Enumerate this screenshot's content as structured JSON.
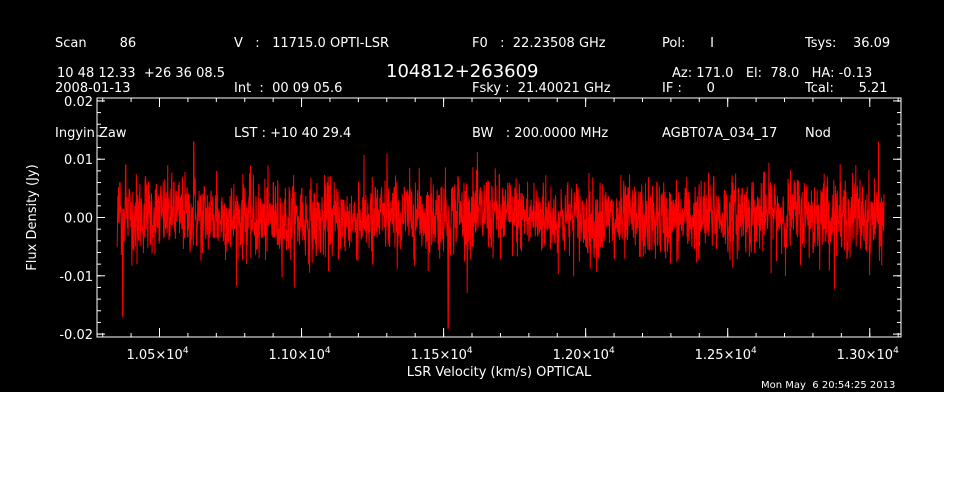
{
  "header": {
    "col1": [
      "Scan        86",
      "2008-01-13",
      "Ingyin Zaw"
    ],
    "col2": [
      "V   :   11715.0 OPTI-LSR",
      "Int  :  00 09 05.6",
      "LST : +10 40 29.4"
    ],
    "col3": [
      "F0   :  22.23508 GHz",
      "Fsky :  21.40021 GHz",
      "BW   : 200.0000 MHz"
    ],
    "col4": [
      "Pol:      I",
      "IF :      0",
      "AGBT07A_034_17"
    ],
    "col5": [
      "Tsys:    36.09",
      "Tcal:      5.21",
      "Nod"
    ],
    "coords": "10 48 12.33  +26 36 08.5",
    "source": "104812+263609",
    "azel": "Az: 171.0   El:  78.0   HA: -0.13"
  },
  "timestamp": "Mon May  6 20:54:25 2013",
  "colors": {
    "background": "#000000",
    "trace": "#ff0000",
    "axes": "#ffffff"
  },
  "chart_data": {
    "type": "line",
    "xlabel": "LSR Velocity (km/s) OPTICAL",
    "ylabel": "Flux Density (Jy)",
    "xlim": [
      10280,
      13110
    ],
    "ylim": [
      -0.0205,
      0.0205
    ],
    "x_ticks": [
      {
        "value": 10500,
        "mantissa": "1.05",
        "exp": "4"
      },
      {
        "value": 11000,
        "mantissa": "1.10",
        "exp": "4"
      },
      {
        "value": 11500,
        "mantissa": "1.15",
        "exp": "4"
      },
      {
        "value": 12000,
        "mantissa": "1.20",
        "exp": "4"
      },
      {
        "value": 12500,
        "mantissa": "1.25",
        "exp": "4"
      },
      {
        "value": 13000,
        "mantissa": "1.30",
        "exp": "4"
      }
    ],
    "y_ticks": [
      {
        "value": 0.02,
        "label": "0.02"
      },
      {
        "value": 0.01,
        "label": "0.01"
      },
      {
        "value": 0.0,
        "label": "0.00"
      },
      {
        "value": -0.01,
        "label": "-0.01"
      },
      {
        "value": -0.02,
        "label": "-0.02"
      }
    ],
    "series": [
      {
        "x_range": [
          10350,
          13050
        ],
        "noise_rms": 0.0045,
        "samples": [
          [
            10350,
            -0.005
          ],
          [
            10360,
            0.006
          ],
          [
            10370,
            -0.017
          ],
          [
            10380,
            0.009
          ],
          [
            10390,
            0.003
          ],
          [
            10420,
            -0.008
          ],
          [
            10450,
            0.007
          ],
          [
            10500,
            -0.004
          ],
          [
            10550,
            0.006
          ],
          [
            10600,
            0.004
          ],
          [
            10620,
            0.013
          ],
          [
            10650,
            -0.006
          ],
          [
            10700,
            0.008
          ],
          [
            10750,
            -0.005
          ],
          [
            10800,
            0.005
          ],
          [
            10850,
            -0.007
          ],
          [
            10900,
            0.006
          ],
          [
            10950,
            -0.004
          ],
          [
            11000,
            0.005
          ],
          [
            11050,
            -0.006
          ],
          [
            11100,
            0.007
          ],
          [
            11150,
            -0.005
          ],
          [
            11200,
            0.006
          ],
          [
            11250,
            -0.008
          ],
          [
            11300,
            0.011
          ],
          [
            11350,
            -0.004
          ],
          [
            11400,
            0.006
          ],
          [
            11450,
            -0.006
          ],
          [
            11500,
            0.005
          ],
          [
            11515,
            -0.019
          ],
          [
            11550,
            0.007
          ],
          [
            11600,
            -0.005
          ],
          [
            11650,
            0.006
          ],
          [
            11700,
            -0.007
          ],
          [
            11750,
            0.005
          ],
          [
            11800,
            -0.004
          ],
          [
            11850,
            0.006
          ],
          [
            11900,
            -0.006
          ],
          [
            11950,
            0.005
          ],
          [
            12000,
            -0.005
          ],
          [
            12050,
            0.006
          ],
          [
            12100,
            -0.007
          ],
          [
            12150,
            0.005
          ],
          [
            12200,
            -0.004
          ],
          [
            12250,
            0.006
          ],
          [
            12300,
            -0.006
          ],
          [
            12350,
            0.005
          ],
          [
            12400,
            -0.005
          ],
          [
            12450,
            0.007
          ],
          [
            12500,
            -0.006
          ],
          [
            12550,
            0.005
          ],
          [
            12600,
            -0.004
          ],
          [
            12650,
            0.006
          ],
          [
            12700,
            -0.005
          ],
          [
            12750,
            0.006
          ],
          [
            12800,
            -0.006
          ],
          [
            12850,
            0.007
          ],
          [
            12900,
            -0.005
          ],
          [
            12950,
            0.009
          ],
          [
            13000,
            -0.006
          ],
          [
            13030,
            0.013
          ],
          [
            13050,
            0.004
          ]
        ]
      }
    ]
  }
}
